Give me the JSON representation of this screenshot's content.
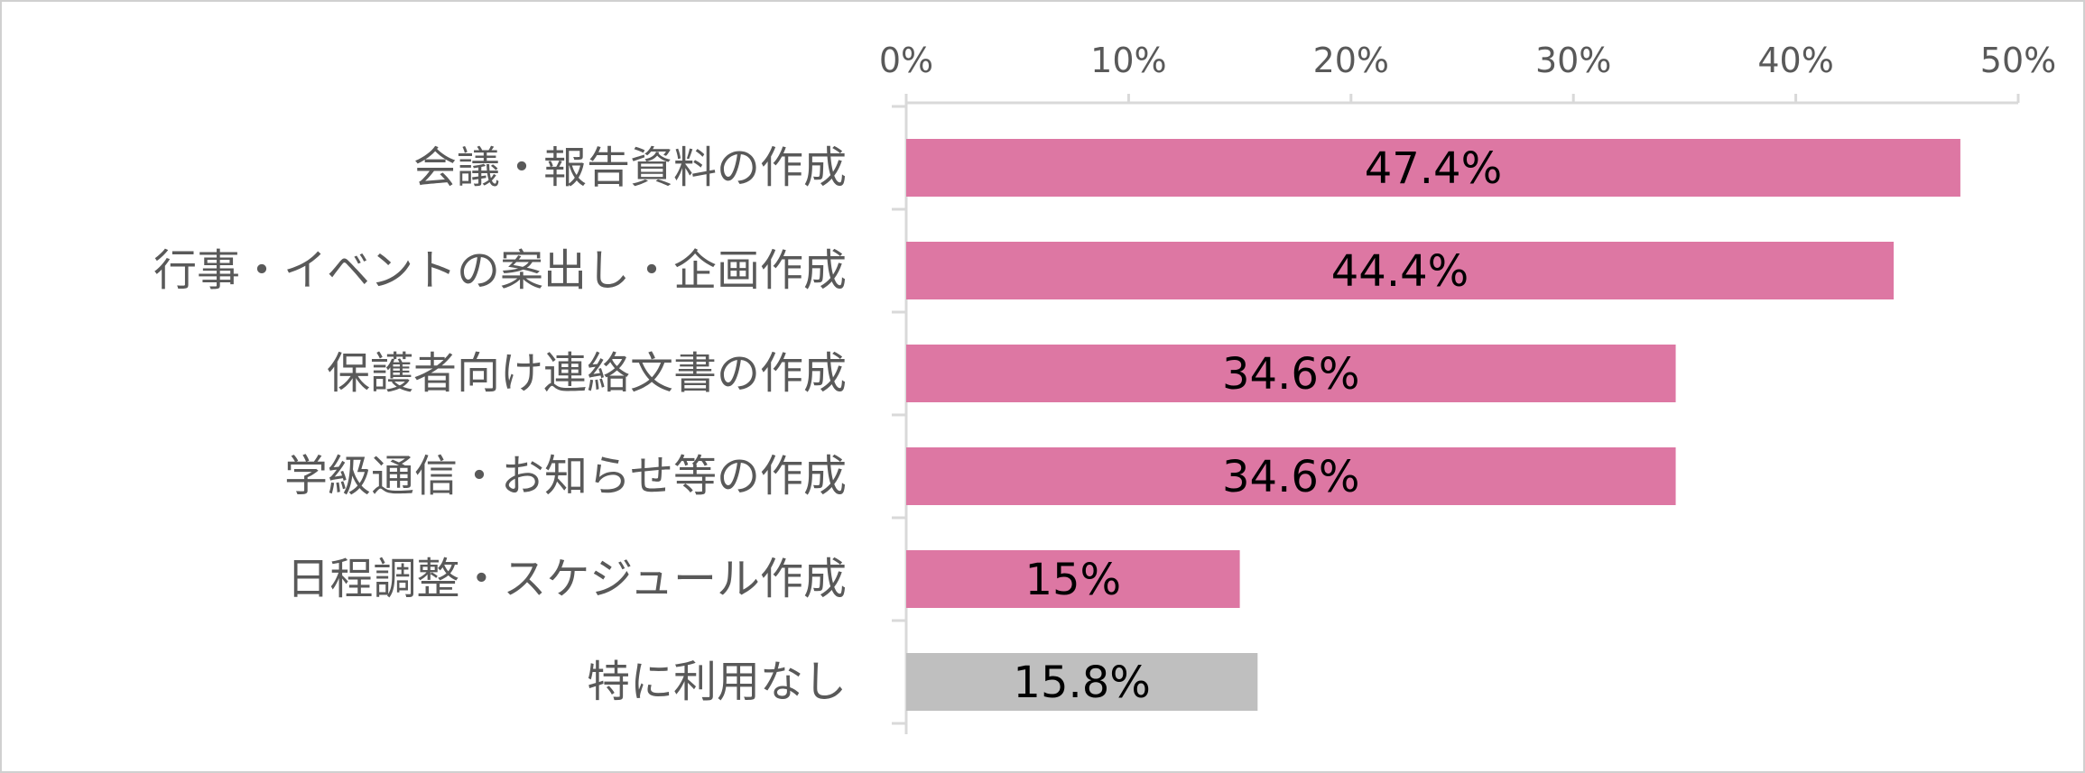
{
  "chart_data": {
    "type": "bar",
    "orientation": "horizontal",
    "title": "",
    "xlabel": "",
    "ylabel": "",
    "xlim": [
      0,
      50
    ],
    "x_ticks": [
      "0%",
      "10%",
      "20%",
      "30%",
      "40%",
      "50%"
    ],
    "x_axis_position": "top",
    "grid": false,
    "legend": "none",
    "categories": [
      "会議・報告資料の作成",
      "行事・イベントの案出し・企画作成",
      "保護者向け連絡文書の作成",
      "学級通信・お知らせ等の作成",
      "日程調整・スケジュール作成",
      "特に利用なし"
    ],
    "values": [
      47.4,
      44.4,
      34.6,
      34.6,
      15,
      15.8
    ],
    "data_labels": [
      "47.4%",
      "44.4%",
      "34.6%",
      "34.6%",
      "15%",
      "15.8%"
    ],
    "bar_colors": [
      "#dd77a3",
      "#dd77a3",
      "#dd77a3",
      "#dd77a3",
      "#dd77a3",
      "#bfbfbf"
    ]
  }
}
